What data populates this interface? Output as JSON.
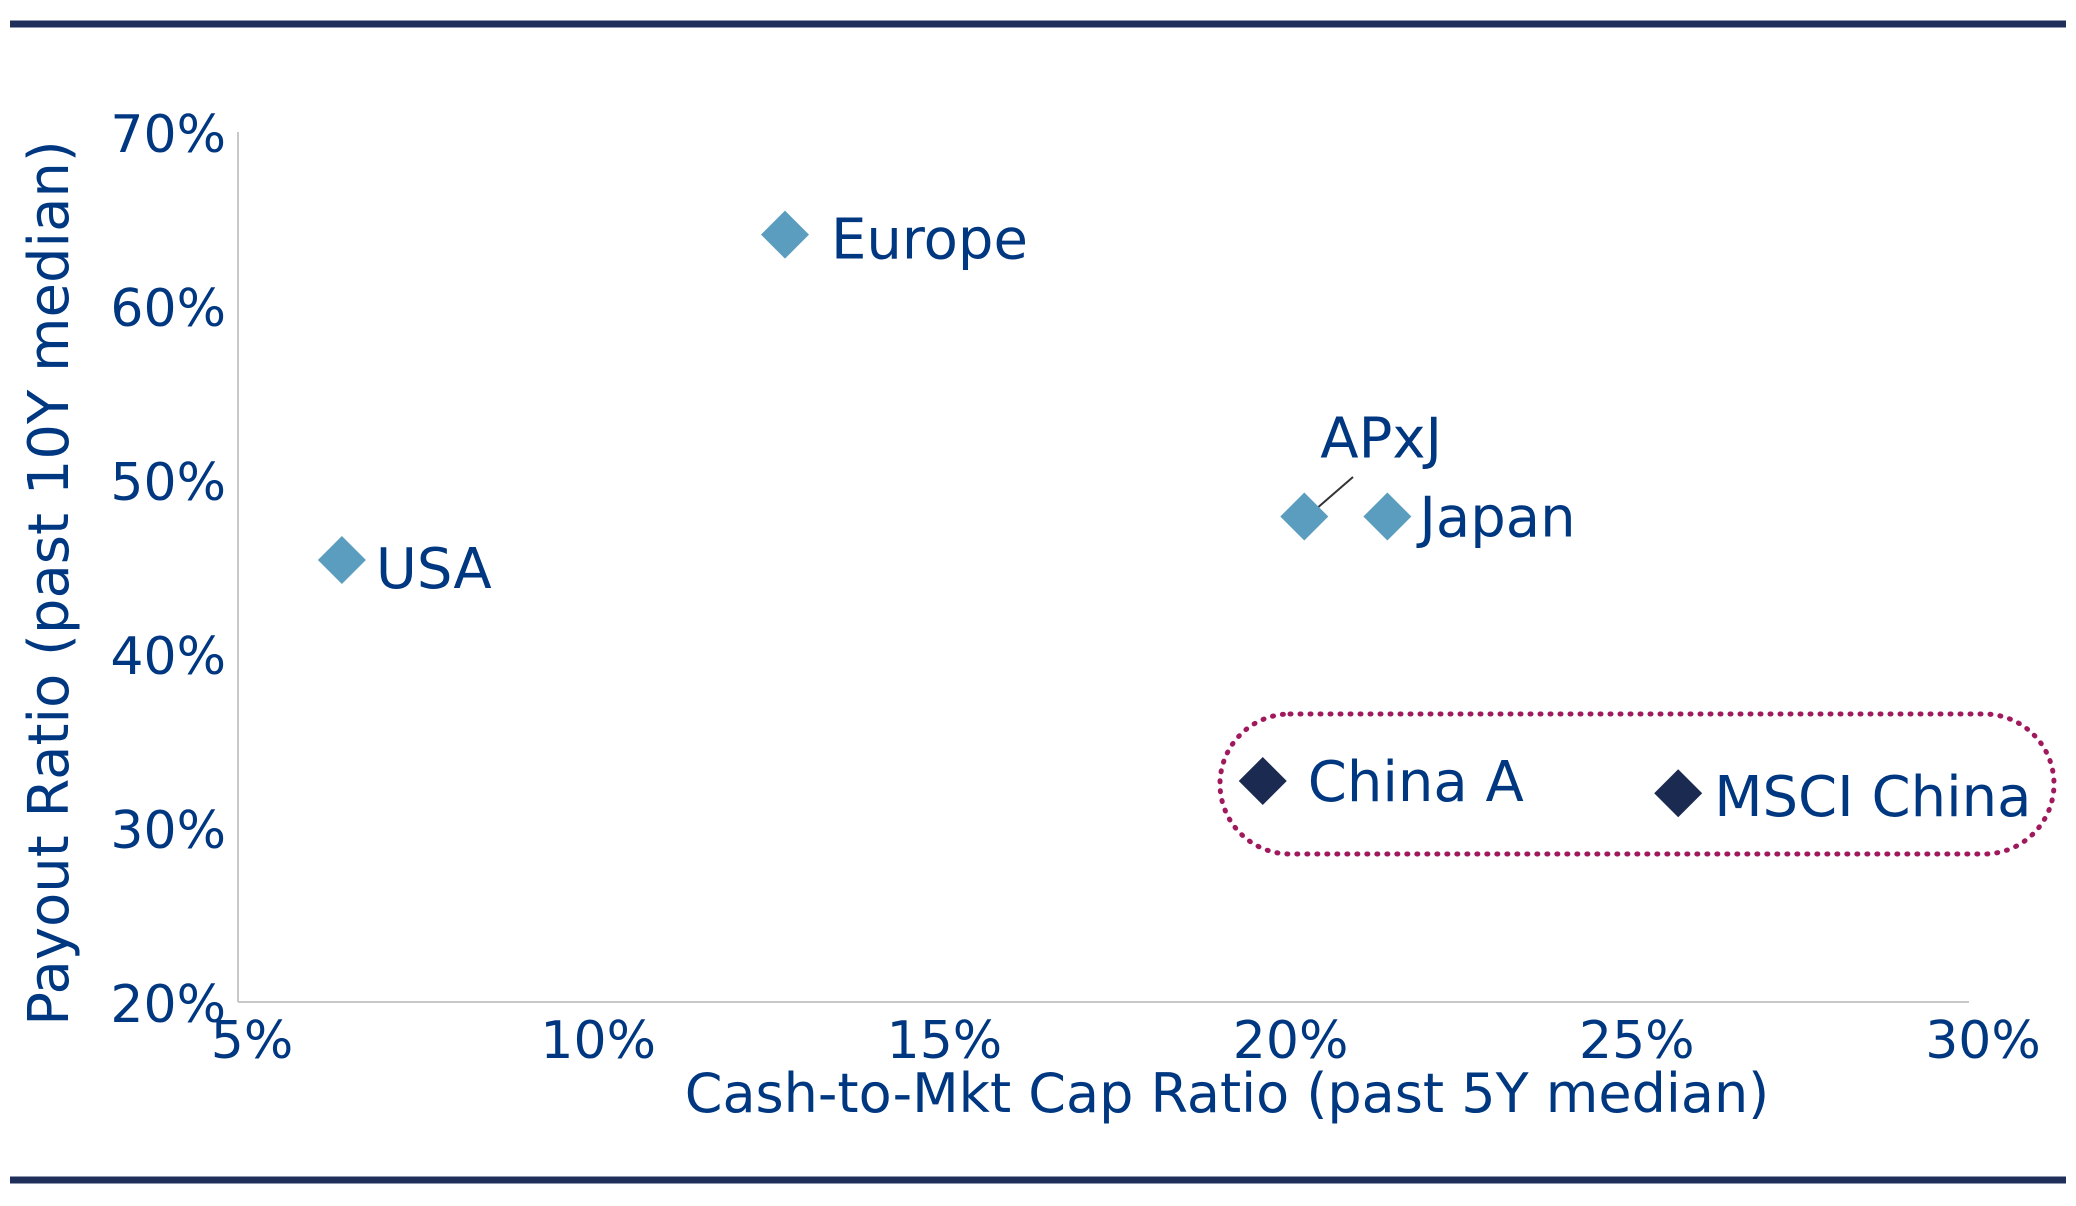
{
  "chart_data": {
    "type": "scatter",
    "title": "",
    "xlabel": "Cash-to-Mkt Cap Ratio (past 5Y median)",
    "ylabel": "Payout Ratio (past 10Y median)",
    "xlim": [
      5,
      30
    ],
    "ylim": [
      20,
      70
    ],
    "x_ticks": [
      "5%",
      "10%",
      "15%",
      "20%",
      "25%",
      "30%"
    ],
    "y_ticks": [
      "20%",
      "30%",
      "40%",
      "50%",
      "60%",
      "70%"
    ],
    "grid": false,
    "points": [
      {
        "label": "USA",
        "x": 6.5,
        "y": 45.4,
        "group": "other"
      },
      {
        "label": "Europe",
        "x": 12.9,
        "y": 64.1,
        "group": "other"
      },
      {
        "label": "APxJ",
        "x": 20.4,
        "y": 47.9,
        "group": "other"
      },
      {
        "label": "Japan",
        "x": 21.6,
        "y": 47.9,
        "group": "other"
      },
      {
        "label": "China A",
        "x": 19.8,
        "y": 32.7,
        "group": "china"
      },
      {
        "label": "MSCI China",
        "x": 25.8,
        "y": 32.0,
        "group": "china"
      }
    ],
    "highlight": "China A and MSCI China circled with dotted outline",
    "colors": {
      "text": "#003781",
      "other": "#5b9dbf",
      "china": "#1b2a50",
      "highlight": "#a0195d",
      "rule": "#1f2f5a",
      "axis": "#c8c8c8"
    }
  }
}
